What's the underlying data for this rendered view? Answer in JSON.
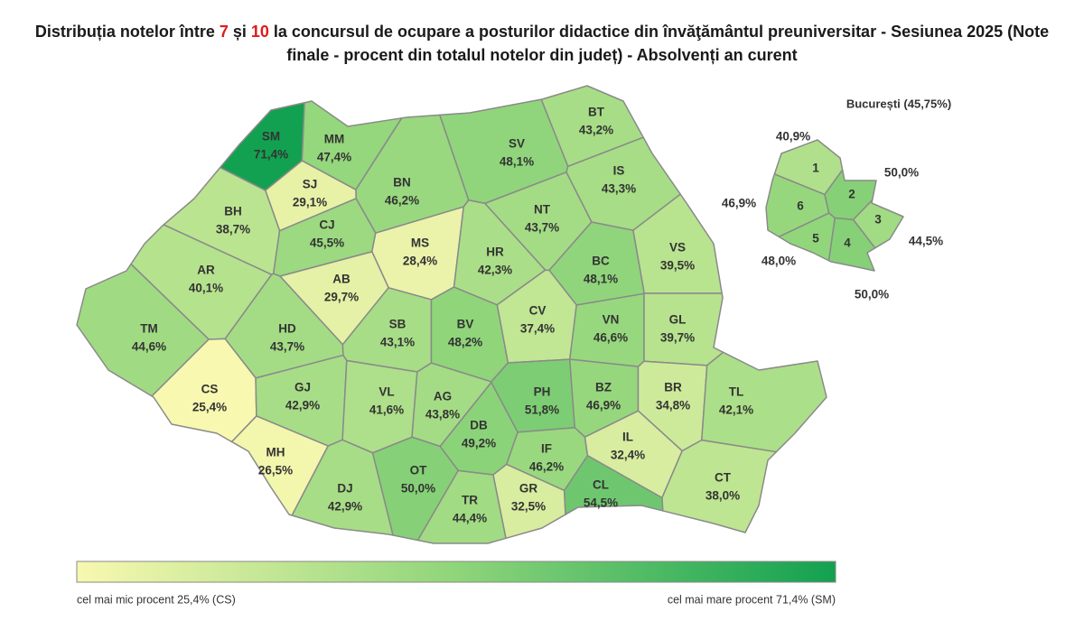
{
  "chart_data": [
    {
      "type": "choropleth",
      "title": [
        "Distribuția notelor între ",
        "7",
        " și ",
        "10",
        " la concursul de ocupare a posturilor didactice din învăţământul preuniversitar - Sesiunea 2025 (Note finale - procent din totalul notelor din județ) - Absolvenți an curent"
      ],
      "categories": [
        "SM",
        "MM",
        "BT",
        "SV",
        "BN",
        "SJ",
        "IS",
        "NT",
        "BH",
        "CJ",
        "MS",
        "HR",
        "BC",
        "VS",
        "AR",
        "AB",
        "TM",
        "HD",
        "SB",
        "BV",
        "CV",
        "VN",
        "GL",
        "CS",
        "GJ",
        "VL",
        "AG",
        "DB",
        "PH",
        "BZ",
        "BR",
        "TL",
        "MH",
        "DJ",
        "OT",
        "TR",
        "IF",
        "IL",
        "GR",
        "CL",
        "CT"
      ],
      "values": [
        71.4,
        47.4,
        43.2,
        48.1,
        46.2,
        29.1,
        43.3,
        43.7,
        38.7,
        45.5,
        28.4,
        42.3,
        48.1,
        39.5,
        40.1,
        29.7,
        44.6,
        43.7,
        43.1,
        48.2,
        37.4,
        46.6,
        39.7,
        25.4,
        42.9,
        41.6,
        43.8,
        49.2,
        51.8,
        46.9,
        34.8,
        42.1,
        26.5,
        42.9,
        50.0,
        44.4,
        46.2,
        32.4,
        32.5,
        54.5,
        38.0
      ],
      "value_labels": [
        "71,4%",
        "47,4%",
        "43,2%",
        "48,1%",
        "46,2%",
        "29,1%",
        "43,3%",
        "43,7%",
        "38,7%",
        "45,5%",
        "28,4%",
        "42,3%",
        "48,1%",
        "39,5%",
        "40,1%",
        "29,7%",
        "44,6%",
        "43,7%",
        "43,1%",
        "48,2%",
        "37,4%",
        "46,6%",
        "39,7%",
        "25,4%",
        "42,9%",
        "41,6%",
        "43,8%",
        "49,2%",
        "51,8%",
        "46,9%",
        "34,8%",
        "42,1%",
        "26,5%",
        "42,9%",
        "50,0%",
        "44,4%",
        "46,2%",
        "32,4%",
        "32,5%",
        "54,5%",
        "38,0%"
      ],
      "colorscale": [
        "#f8f8b0",
        "#8fd57a",
        "#12a150"
      ],
      "legend": {
        "min_label": "cel mai mic procent 25,4% (CS)",
        "max_label": "cel mai mare procent 71,4% (SM)"
      }
    },
    {
      "type": "choropleth",
      "title": "București (45,75%)",
      "categories": [
        "1",
        "2",
        "3",
        "4",
        "5",
        "6"
      ],
      "values": [
        40.9,
        50.0,
        44.5,
        50.0,
        48.0,
        46.9
      ],
      "value_labels": [
        "40,9%",
        "50,0%",
        "44,5%",
        "50,0%",
        "48,0%",
        "46,9%"
      ]
    }
  ]
}
